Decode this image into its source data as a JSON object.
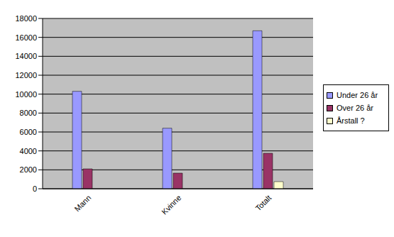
{
  "chart_data": {
    "type": "bar",
    "categories": [
      "Mann",
      "Kvinne",
      "Totalt"
    ],
    "series": [
      {
        "name": "Under 26 år",
        "color": "#9999ff",
        "values": [
          10300,
          6400,
          16700
        ]
      },
      {
        "name": "Over 26 år",
        "color": "#993366",
        "values": [
          2100,
          1650,
          3750
        ]
      },
      {
        "name": "Årstall ?",
        "color": "#ffffcc",
        "values": [
          null,
          null,
          750
        ]
      }
    ],
    "ylim": [
      0,
      18000
    ],
    "yticks": [
      0,
      2000,
      4000,
      6000,
      8000,
      10000,
      12000,
      14000,
      16000,
      18000
    ],
    "grid": true,
    "legend": "right"
  }
}
